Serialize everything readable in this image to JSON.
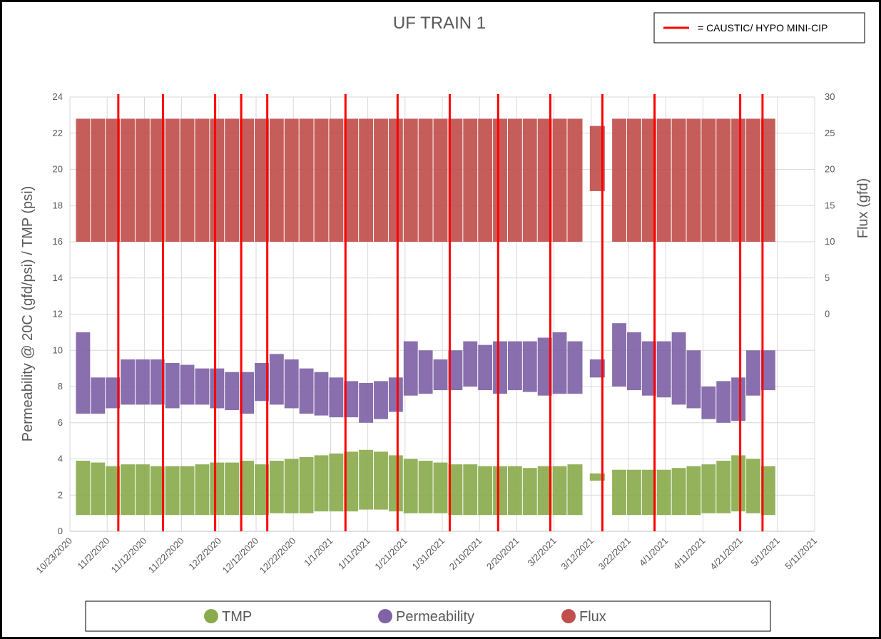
{
  "chart_data": {
    "type": "range",
    "title": "UF TRAIN 1",
    "y_label": "Permeability @ 20C (gfd/psi) / TMP (psi)",
    "y2_label": "Flux (gfd)",
    "xlim": [
      "10/23/2020",
      "5/11/2021"
    ],
    "xticks": [
      "10/23/2020",
      "11/2/2020",
      "11/12/2020",
      "11/22/2020",
      "12/2/2020",
      "12/12/2020",
      "12/22/2020",
      "1/1/2021",
      "1/11/2021",
      "1/21/2021",
      "1/31/2021",
      "2/10/2021",
      "2/20/2021",
      "3/2/2021",
      "3/12/2021",
      "3/22/2021",
      "4/1/2021",
      "4/11/2021",
      "4/21/2021",
      "5/1/2021",
      "5/11/2021"
    ],
    "ylim": [
      0,
      24
    ],
    "yticks": [
      0,
      2,
      4,
      6,
      8,
      10,
      12,
      14,
      16,
      18,
      20,
      22,
      24
    ],
    "y2lim": [
      -30,
      30
    ],
    "y2ticks": [
      0,
      5,
      10,
      15,
      20,
      25,
      30
    ],
    "grid": true,
    "x": [
      "10/25/2020",
      "10/29/2020",
      "11/2/2020",
      "11/6/2020",
      "11/10/2020",
      "11/14/2020",
      "11/18/2020",
      "11/22/2020",
      "11/26/2020",
      "11/30/2020",
      "12/4/2020",
      "12/8/2020",
      "12/12/2020",
      "12/16/2020",
      "12/20/2020",
      "12/24/2020",
      "12/28/2020",
      "1/1/2021",
      "1/5/2021",
      "1/9/2021",
      "1/13/2021",
      "1/17/2021",
      "1/21/2021",
      "1/25/2021",
      "1/29/2021",
      "2/2/2021",
      "2/6/2021",
      "2/10/2021",
      "2/14/2021",
      "2/18/2021",
      "2/22/2021",
      "2/26/2021",
      "3/2/2021",
      "3/6/2021",
      "3/12/2021",
      "3/18/2021",
      "3/22/2021",
      "3/26/2021",
      "3/30/2021",
      "4/3/2021",
      "4/7/2021",
      "4/11/2021",
      "4/15/2021",
      "4/19/2021",
      "4/23/2021",
      "4/27/2021"
    ],
    "series": [
      {
        "name": "TMP",
        "color": "#8aab4d",
        "low": [
          0.9,
          0.9,
          0.9,
          0.9,
          0.9,
          0.9,
          0.9,
          0.9,
          0.9,
          0.9,
          0.9,
          0.9,
          0.9,
          1.0,
          1.0,
          1.0,
          1.1,
          1.1,
          1.1,
          1.2,
          1.2,
          1.1,
          1.0,
          1.0,
          1.0,
          0.9,
          0.9,
          0.9,
          0.9,
          0.9,
          0.9,
          0.9,
          0.9,
          0.9,
          2.8,
          0.9,
          0.9,
          0.9,
          0.9,
          0.9,
          0.9,
          1.0,
          1.0,
          1.1,
          1.0,
          0.9
        ],
        "high": [
          3.9,
          3.8,
          3.6,
          3.7,
          3.7,
          3.6,
          3.6,
          3.6,
          3.7,
          3.8,
          3.8,
          3.9,
          3.7,
          3.9,
          4.0,
          4.1,
          4.2,
          4.3,
          4.4,
          4.5,
          4.4,
          4.2,
          4.0,
          3.9,
          3.8,
          3.7,
          3.7,
          3.6,
          3.6,
          3.6,
          3.5,
          3.6,
          3.6,
          3.7,
          3.2,
          3.4,
          3.4,
          3.4,
          3.4,
          3.5,
          3.6,
          3.7,
          3.9,
          4.2,
          4.0,
          3.6
        ]
      },
      {
        "name": "Permeability",
        "color": "#7f63a6",
        "low": [
          6.5,
          6.5,
          6.8,
          7.0,
          7.0,
          7.0,
          6.8,
          7.0,
          7.0,
          6.8,
          6.7,
          6.5,
          7.2,
          7.0,
          6.8,
          6.5,
          6.4,
          6.3,
          6.3,
          6.0,
          6.2,
          6.6,
          7.5,
          7.6,
          7.8,
          7.8,
          8.0,
          7.8,
          7.6,
          7.8,
          7.7,
          7.5,
          7.6,
          7.6,
          8.5,
          8.0,
          7.8,
          7.5,
          7.4,
          7.0,
          6.8,
          6.2,
          6.0,
          6.1,
          7.5,
          7.8
        ],
        "high": [
          11.0,
          8.5,
          8.5,
          9.5,
          9.5,
          9.5,
          9.3,
          9.2,
          9.0,
          9.0,
          8.8,
          8.8,
          9.3,
          9.8,
          9.5,
          9.0,
          8.8,
          8.5,
          8.3,
          8.2,
          8.3,
          8.5,
          10.5,
          10.0,
          9.5,
          10.0,
          10.5,
          10.3,
          10.5,
          10.5,
          10.5,
          10.7,
          11.0,
          10.5,
          9.5,
          11.5,
          11.0,
          10.5,
          10.5,
          11.0,
          10.0,
          8.0,
          8.3,
          8.5,
          10.0,
          10.0
        ]
      },
      {
        "name": "Flux",
        "color": "#c0504d",
        "axis": "y2",
        "low": [
          10,
          10,
          10,
          10,
          10,
          10,
          10,
          10,
          10,
          10,
          10,
          10,
          10,
          10,
          10,
          10,
          10,
          10,
          10,
          10,
          10,
          10,
          10,
          10,
          10,
          10,
          10,
          10,
          10,
          10,
          10,
          10,
          10,
          10,
          17,
          10,
          10,
          10,
          10,
          10,
          10,
          10,
          10,
          10,
          10,
          10
        ],
        "high": [
          27,
          27,
          27,
          27,
          27,
          27,
          27,
          27,
          27,
          27,
          27,
          27,
          27,
          27,
          27,
          27,
          27,
          27,
          27,
          27,
          27,
          27,
          27,
          27,
          27,
          27,
          27,
          27,
          27,
          27,
          27,
          27,
          27,
          27,
          26,
          27,
          27,
          27,
          27,
          27,
          27,
          27,
          27,
          27,
          27,
          27
        ]
      }
    ],
    "events": {
      "label": "= CAUSTIC/ HYPO MINI-CIP",
      "color": "#ff0000",
      "x": [
        "11/5/2020",
        "11/17/2020",
        "12/1/2020",
        "12/8/2020",
        "12/15/2020",
        "1/5/2021",
        "1/19/2021",
        "2/2/2021",
        "2/15/2021",
        "3/1/2021",
        "3/15/2021",
        "3/29/2021",
        "4/21/2021",
        "4/27/2021"
      ]
    }
  }
}
